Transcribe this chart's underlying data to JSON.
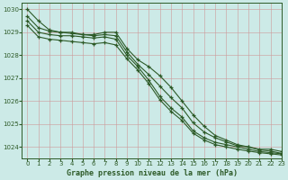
{
  "title": "Graphe pression niveau de la mer (hPa)",
  "bg_color": "#cceae7",
  "grid_color_major": "#b0d0cc",
  "grid_color_minor": "#e8f5f3",
  "line_color": "#2d5a27",
  "xlim": [
    -0.5,
    23
  ],
  "ylim": [
    1023.5,
    1030.3
  ],
  "yticks": [
    1024,
    1025,
    1026,
    1027,
    1028,
    1029,
    1030
  ],
  "xticks": [
    0,
    1,
    2,
    3,
    4,
    5,
    6,
    7,
    8,
    9,
    10,
    11,
    12,
    13,
    14,
    15,
    16,
    17,
    18,
    19,
    20,
    21,
    22,
    23
  ],
  "series": [
    [
      1030.0,
      1029.5,
      1029.1,
      1029.0,
      1029.0,
      1028.9,
      1028.9,
      1029.0,
      1029.0,
      1028.3,
      1027.8,
      1027.5,
      1027.1,
      1026.6,
      1026.0,
      1025.4,
      1024.9,
      1024.5,
      1024.3,
      1024.1,
      1024.0,
      1023.9,
      1023.9,
      1023.8
    ],
    [
      1029.7,
      1029.2,
      1029.05,
      1029.0,
      1028.95,
      1028.9,
      1028.85,
      1028.9,
      1028.85,
      1028.15,
      1027.6,
      1027.15,
      1026.65,
      1026.15,
      1025.7,
      1025.05,
      1024.65,
      1024.4,
      1024.22,
      1024.05,
      1024.0,
      1023.87,
      1023.82,
      1023.72
    ],
    [
      1029.5,
      1029.0,
      1028.9,
      1028.85,
      1028.85,
      1028.8,
      1028.75,
      1028.8,
      1028.7,
      1028.0,
      1027.5,
      1026.9,
      1026.2,
      1025.7,
      1025.3,
      1024.7,
      1024.4,
      1024.2,
      1024.1,
      1024.0,
      1023.9,
      1023.8,
      1023.75,
      1023.7
    ],
    [
      1029.3,
      1028.8,
      1028.7,
      1028.65,
      1028.6,
      1028.55,
      1028.5,
      1028.55,
      1028.45,
      1027.85,
      1027.35,
      1026.75,
      1026.05,
      1025.55,
      1025.15,
      1024.6,
      1024.3,
      1024.1,
      1024.0,
      1023.9,
      1023.82,
      1023.75,
      1023.7,
      1023.65
    ]
  ]
}
